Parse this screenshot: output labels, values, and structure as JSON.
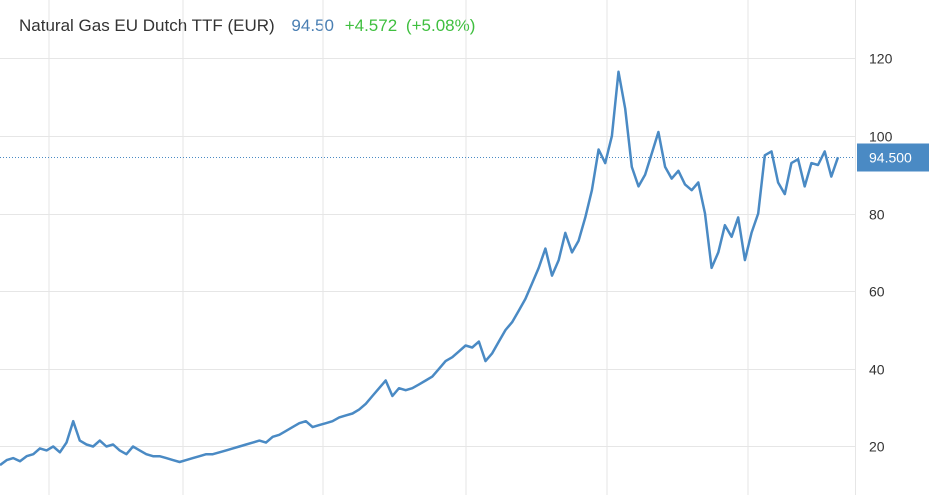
{
  "header": {
    "title": "Natural Gas EU Dutch TTF (EUR)",
    "price": "94.50",
    "change": "+4.572",
    "change_pct": "(+5.08%)"
  },
  "colors": {
    "line": "#4a8ac4",
    "grid": "#e6e6e6",
    "price_text": "#4a7fb3",
    "change_text": "#3fbf3f",
    "last_value_box": "#4a8ac4"
  },
  "chart_data": {
    "type": "line",
    "title": "Natural Gas EU Dutch TTF (EUR)",
    "xlabel": "",
    "ylabel": "",
    "ylim": [
      7.5,
      135
    ],
    "y_ticks": [
      20,
      40,
      60,
      80,
      100,
      120
    ],
    "y_tick_labels": [
      "20",
      "40",
      "60",
      "80",
      "100",
      "120"
    ],
    "grid": true,
    "y_axis_side": "right",
    "last_value": 94.5,
    "last_value_label": "94.500",
    "series": [
      {
        "values": [
          15.2,
          16.5,
          17.0,
          16.2,
          17.5,
          18.0,
          19.5,
          19.0,
          20.0,
          18.5,
          21.0,
          26.5,
          21.5,
          20.5,
          20.0,
          21.5,
          20.0,
          20.5,
          19.0,
          18.0,
          20.0,
          19.0,
          18.0,
          17.5,
          17.5,
          17.0,
          16.5,
          16.0,
          16.5,
          17.0,
          17.5,
          18.0,
          18.0,
          18.5,
          19.0,
          19.5,
          20.0,
          20.5,
          21.0,
          21.5,
          21.0,
          22.5,
          23.0,
          24.0,
          25.0,
          26.0,
          26.5,
          25.0,
          25.5,
          26.0,
          26.5,
          27.5,
          28.0,
          28.5,
          29.5,
          31.0,
          33.0,
          35.0,
          37.0,
          33.0,
          35.0,
          34.5,
          35.0,
          36.0,
          37.0,
          38.0,
          40.0,
          42.0,
          43.0,
          44.5,
          46.0,
          45.5,
          47.0,
          42.0,
          44.0,
          47.0,
          50.0,
          52.0,
          55.0,
          58.0,
          62.0,
          66.0,
          71.0,
          64.0,
          68.0,
          75.0,
          70.0,
          73.0,
          79.0,
          86.0,
          96.5,
          93.0,
          100.0,
          116.5,
          107.0,
          92.0,
          87.0,
          90.0,
          95.5,
          101.0,
          92.0,
          89.0,
          91.0,
          87.5,
          86.0,
          88.0,
          80.0,
          66.0,
          70.0,
          77.0,
          74.0,
          79.0,
          68.0,
          75.0,
          80.0,
          95.0,
          96.0,
          88.0,
          85.0,
          93.0,
          94.0,
          87.0,
          93.0,
          92.5,
          96.0,
          89.5,
          94.5
        ]
      }
    ]
  }
}
